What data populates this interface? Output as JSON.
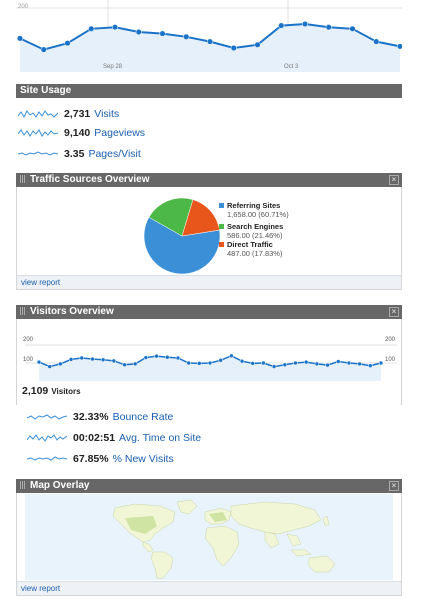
{
  "top_chart": {
    "y_max_label": "200",
    "x_labels": [
      "Sep 28",
      "Oct 3"
    ],
    "values": [
      105,
      70,
      90,
      135,
      140,
      125,
      120,
      110,
      95,
      75,
      85,
      145,
      150,
      140,
      135,
      95,
      80
    ]
  },
  "site_usage": {
    "title": "Site Usage",
    "metrics": [
      {
        "value": "2,731",
        "label": "Visits"
      },
      {
        "value": "9,140",
        "label": "Pageviews"
      },
      {
        "value": "3.35",
        "label": "Pages/Visit"
      }
    ]
  },
  "traffic_sources": {
    "title": "Traffic Sources Overview",
    "view_report": "view report",
    "slices": [
      {
        "name": "Referring Sites",
        "value": 1658,
        "detail": "1,658.00 (60.71%)",
        "color": "#3a8fd6"
      },
      {
        "name": "Search Engines",
        "value": 586,
        "detail": "586.00 (21.46%)",
        "color": "#4cb848"
      },
      {
        "name": "Direct Traffic",
        "value": 487,
        "detail": "487.00 (17.83%)",
        "color": "#e8561c"
      }
    ]
  },
  "visitors_overview": {
    "title": "Visitors Overview",
    "y_top_label": "200",
    "y_mid_label": "100",
    "visitors_value": "2,109",
    "visitors_label": "Visitors",
    "values": [
      105,
      80,
      95,
      120,
      128,
      122,
      118,
      112,
      90,
      95,
      130,
      138,
      132,
      128,
      100,
      98,
      100,
      115,
      140,
      110,
      98,
      100,
      80,
      90,
      100,
      105,
      95,
      88,
      108,
      100,
      95,
      85,
      100
    ],
    "metrics": [
      {
        "value": "32.33%",
        "label": "Bounce Rate"
      },
      {
        "value": "00:02:51",
        "label": "Avg. Time on Site"
      },
      {
        "value": "67.85%",
        "label": "% New Visits"
      }
    ]
  },
  "map_overlay": {
    "title": "Map Overlay",
    "view_report": "view report"
  }
}
